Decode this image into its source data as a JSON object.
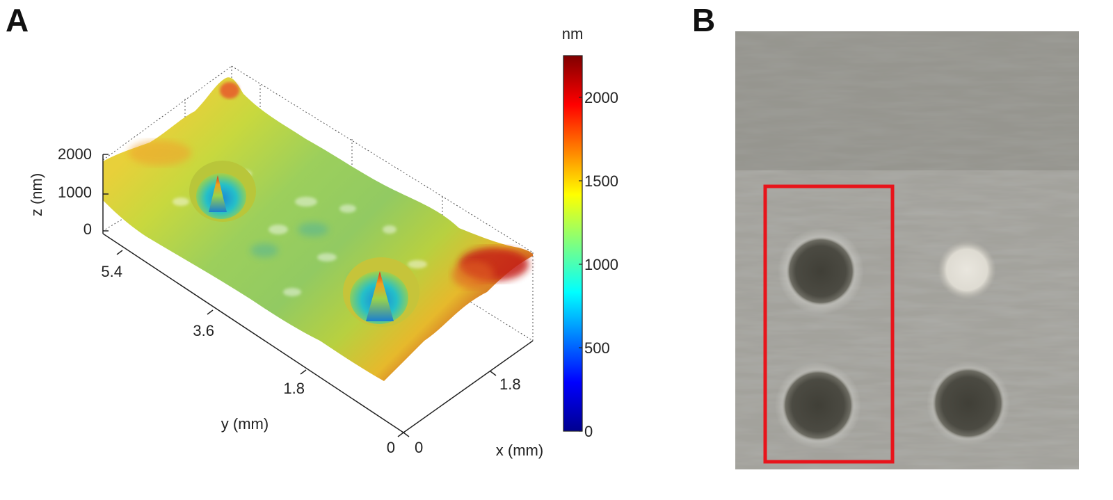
{
  "figure": {
    "panel_a_label": "A",
    "panel_b_label": "B"
  },
  "chart_data": {
    "type": "surface",
    "x_axis": {
      "label": "x (mm)",
      "ticks": [
        "0",
        "1.8"
      ]
    },
    "y_axis": {
      "label": "y (mm)",
      "ticks": [
        "0",
        "1.8",
        "3.6",
        "5.4"
      ]
    },
    "z_axis": {
      "label": "z (nm)",
      "ticks": [
        "0",
        "1000",
        "2000"
      ]
    },
    "colorbar": {
      "unit": "nm",
      "ticks": [
        "0",
        "500",
        "1000",
        "1500",
        "2000"
      ],
      "range": [
        0,
        2250
      ],
      "colormap": "jet"
    },
    "features": [
      {
        "feature": "crater",
        "y_mm": 5.2,
        "peak_nm": 1250
      },
      {
        "feature": "crater",
        "y_mm": 2.2,
        "peak_nm": 1500
      }
    ]
  },
  "photo": {
    "highlight_color": "#e8141b",
    "spots": [
      "dark",
      "light",
      "dark",
      "dark"
    ]
  }
}
